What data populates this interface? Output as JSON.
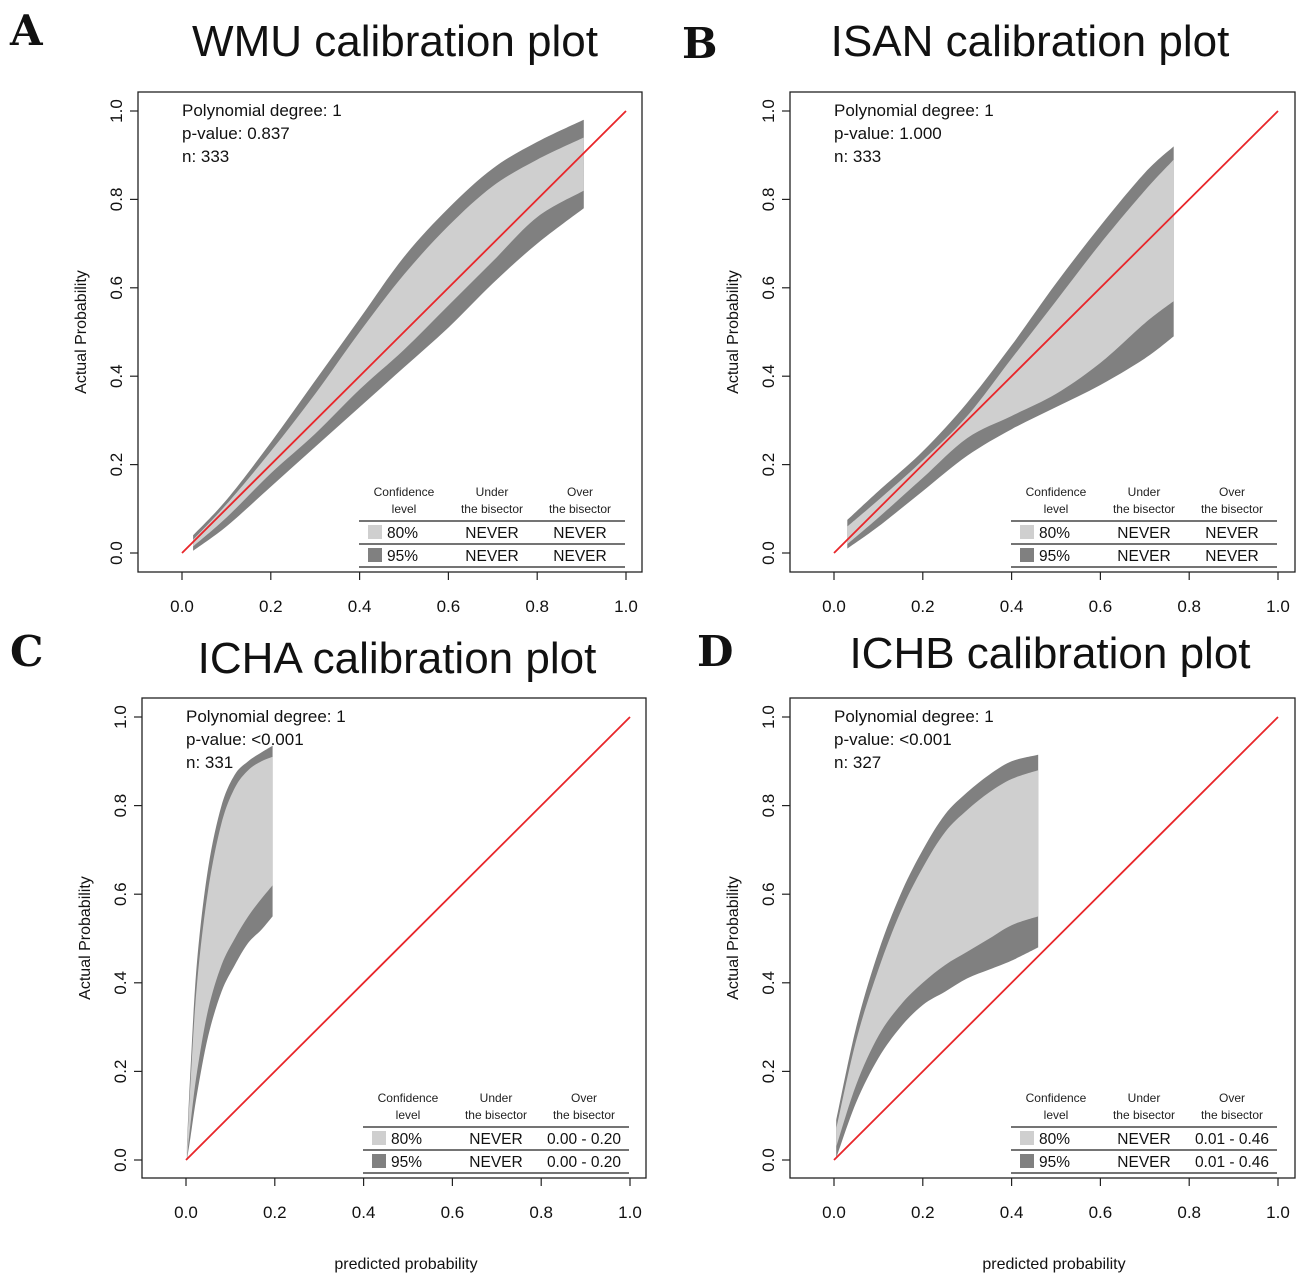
{
  "colors": {
    "band80": "#cfcfcf",
    "band95": "#808080",
    "bisector": "#e8262a",
    "axis": "#222222"
  },
  "chart_data": [
    {
      "type": "area",
      "panel_letter": "A",
      "title": "WMU calibration plot",
      "xlabel": "",
      "ylabel": "Actual Probability",
      "xlim": [
        0,
        1
      ],
      "ylim": [
        0,
        1
      ],
      "xticks": [
        "0.0",
        "0.2",
        "0.4",
        "0.6",
        "0.8",
        "1.0"
      ],
      "yticks": [
        "0.0",
        "0.2",
        "0.4",
        "0.6",
        "0.8",
        "1.0"
      ],
      "info": [
        "Polynomial degree: 1",
        "p-value: 0.837",
        "n: 333"
      ],
      "bisector": {
        "x": [
          0,
          1
        ],
        "y": [
          0,
          1
        ]
      },
      "bands": {
        "x": [
          0.025,
          0.1,
          0.2,
          0.3,
          0.4,
          0.5,
          0.6,
          0.7,
          0.8,
          0.905
        ],
        "upper95": [
          0.04,
          0.12,
          0.25,
          0.39,
          0.53,
          0.67,
          0.78,
          0.87,
          0.93,
          0.98
        ],
        "upper80": [
          0.03,
          0.11,
          0.23,
          0.36,
          0.5,
          0.63,
          0.74,
          0.83,
          0.89,
          0.94
        ],
        "lower80": [
          0.015,
          0.08,
          0.18,
          0.27,
          0.37,
          0.46,
          0.56,
          0.66,
          0.76,
          0.82
        ],
        "lower95": [
          0.005,
          0.06,
          0.15,
          0.24,
          0.33,
          0.42,
          0.51,
          0.61,
          0.7,
          0.78
        ]
      },
      "legend": {
        "headers": [
          "Confidence|level",
          "Under|the bisector",
          "Over|the bisector"
        ],
        "rows": [
          {
            "level": "80%",
            "under": "NEVER",
            "over": "NEVER",
            "swatch": "band80"
          },
          {
            "level": "95%",
            "under": "NEVER",
            "over": "NEVER",
            "swatch": "band95"
          }
        ]
      }
    },
    {
      "type": "area",
      "panel_letter": "B",
      "title": "ISAN calibration plot",
      "xlabel": "",
      "ylabel": "Actual Probability",
      "xlim": [
        0,
        1
      ],
      "ylim": [
        0,
        1
      ],
      "xticks": [
        "0.0",
        "0.2",
        "0.4",
        "0.6",
        "0.8",
        "1.0"
      ],
      "yticks": [
        "0.0",
        "0.2",
        "0.4",
        "0.6",
        "0.8",
        "1.0"
      ],
      "info": [
        "Polynomial degree: 1",
        "p-value: 1.000",
        "n: 333"
      ],
      "bisector": {
        "x": [
          0,
          1
        ],
        "y": [
          0,
          1
        ]
      },
      "bands": {
        "x": [
          0.03,
          0.1,
          0.2,
          0.3,
          0.4,
          0.5,
          0.6,
          0.7,
          0.765
        ],
        "upper95": [
          0.075,
          0.14,
          0.23,
          0.34,
          0.47,
          0.61,
          0.74,
          0.86,
          0.92
        ],
        "upper80": [
          0.06,
          0.12,
          0.21,
          0.31,
          0.44,
          0.57,
          0.7,
          0.82,
          0.89
        ],
        "lower80": [
          0.02,
          0.08,
          0.17,
          0.26,
          0.31,
          0.36,
          0.43,
          0.52,
          0.57
        ],
        "lower95": [
          0.01,
          0.06,
          0.14,
          0.22,
          0.28,
          0.33,
          0.38,
          0.44,
          0.49
        ]
      },
      "legend": {
        "headers": [
          "Confidence|level",
          "Under|the bisector",
          "Over|the bisector"
        ],
        "rows": [
          {
            "level": "80%",
            "under": "NEVER",
            "over": "NEVER",
            "swatch": "band80"
          },
          {
            "level": "95%",
            "under": "NEVER",
            "over": "NEVER",
            "swatch": "band95"
          }
        ]
      }
    },
    {
      "type": "area",
      "panel_letter": "C",
      "title": "ICHA calibration plot",
      "xlabel": "predicted probability",
      "ylabel": "Actual Probability",
      "xlim": [
        0,
        1
      ],
      "ylim": [
        0,
        1
      ],
      "xticks": [
        "0.0",
        "0.2",
        "0.4",
        "0.6",
        "0.8",
        "1.0"
      ],
      "yticks": [
        "0.0",
        "0.2",
        "0.4",
        "0.6",
        "0.8",
        "1.0"
      ],
      "info": [
        "Polynomial degree: 1",
        "p-value: <0.001",
        "n: 331"
      ],
      "bisector": {
        "x": [
          0,
          1
        ],
        "y": [
          0,
          1
        ]
      },
      "bands": {
        "x": [
          0.002,
          0.01,
          0.025,
          0.05,
          0.08,
          0.11,
          0.14,
          0.17,
          0.195
        ],
        "upper95": [
          0.03,
          0.2,
          0.45,
          0.66,
          0.8,
          0.87,
          0.9,
          0.92,
          0.935
        ],
        "upper80": [
          0.02,
          0.17,
          0.4,
          0.61,
          0.76,
          0.84,
          0.88,
          0.9,
          0.91
        ],
        "lower80": [
          0.005,
          0.08,
          0.2,
          0.34,
          0.44,
          0.5,
          0.55,
          0.59,
          0.62
        ],
        "lower95": [
          0.0,
          0.05,
          0.15,
          0.28,
          0.38,
          0.44,
          0.49,
          0.52,
          0.55
        ]
      },
      "legend": {
        "headers": [
          "Confidence|level",
          "Under|the bisector",
          "Over|the bisector"
        ],
        "rows": [
          {
            "level": "80%",
            "under": "NEVER",
            "over": "0.00 - 0.20",
            "swatch": "band80"
          },
          {
            "level": "95%",
            "under": "NEVER",
            "over": "0.00 - 0.20",
            "swatch": "band95"
          }
        ]
      }
    },
    {
      "type": "area",
      "panel_letter": "D",
      "title": "ICHB calibration plot",
      "xlabel": "predicted probability",
      "ylabel": "Actual Probability",
      "xlim": [
        0,
        1
      ],
      "ylim": [
        0,
        1
      ],
      "xticks": [
        "0.0",
        "0.2",
        "0.4",
        "0.6",
        "0.8",
        "1.0"
      ],
      "yticks": [
        "0.0",
        "0.2",
        "0.4",
        "0.6",
        "0.8",
        "1.0"
      ],
      "info": [
        "Polynomial degree: 1",
        "p-value: <0.001",
        "n: 327"
      ],
      "bisector": {
        "x": [
          0,
          1
        ],
        "y": [
          0,
          1
        ]
      },
      "bands": {
        "x": [
          0.005,
          0.05,
          0.1,
          0.15,
          0.2,
          0.25,
          0.3,
          0.35,
          0.4,
          0.46
        ],
        "upper95": [
          0.09,
          0.3,
          0.47,
          0.6,
          0.7,
          0.78,
          0.83,
          0.87,
          0.9,
          0.915
        ],
        "upper80": [
          0.07,
          0.27,
          0.43,
          0.56,
          0.66,
          0.74,
          0.79,
          0.83,
          0.86,
          0.88
        ],
        "lower80": [
          0.03,
          0.17,
          0.28,
          0.35,
          0.4,
          0.44,
          0.47,
          0.5,
          0.53,
          0.55
        ],
        "lower95": [
          0.005,
          0.13,
          0.23,
          0.3,
          0.35,
          0.38,
          0.41,
          0.43,
          0.45,
          0.48
        ]
      },
      "legend": {
        "headers": [
          "Confidence|level",
          "Under|the bisector",
          "Over|the bisector"
        ],
        "rows": [
          {
            "level": "80%",
            "under": "NEVER",
            "over": "0.01 - 0.46",
            "swatch": "band80"
          },
          {
            "level": "95%",
            "under": "NEVER",
            "over": "0.01 - 0.46",
            "swatch": "band95"
          }
        ]
      }
    }
  ]
}
